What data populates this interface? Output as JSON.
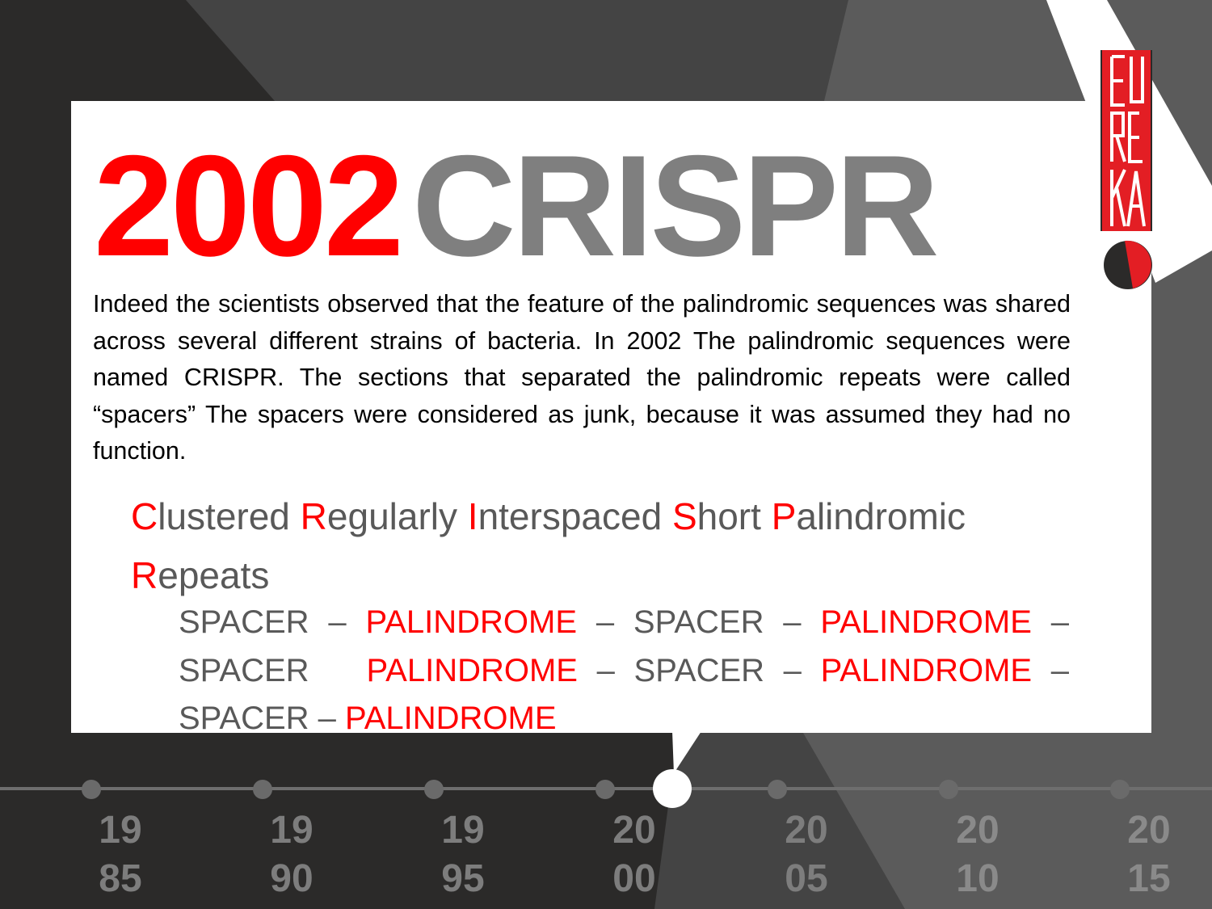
{
  "title": {
    "year": "2002",
    "name": "CRISPR"
  },
  "paragraph": "Indeed the scientists observed that the feature of the palindromic sequences was shared across several different strains of bacteria. In 2002 The palindromic sequences were named CRISPR. The sections that separated the palindromic repeats were called “spacers” The spacers were considered as junk, because it was assumed they  had no function.",
  "acronym": [
    {
      "t": "C",
      "red": true
    },
    {
      "t": "lustered ",
      "red": false
    },
    {
      "t": "R",
      "red": true
    },
    {
      "t": "egularly ",
      "red": false
    },
    {
      "t": "I",
      "red": true
    },
    {
      "t": "nterspaced ",
      "red": false
    },
    {
      "t": "S",
      "red": true
    },
    {
      "t": "hort ",
      "red": false
    },
    {
      "t": "P",
      "red": true
    },
    {
      "t": "alindromic ",
      "red": false
    },
    {
      "t": "R",
      "red": true
    },
    {
      "t": "epeats",
      "red": false
    }
  ],
  "sequence": [
    {
      "t": "SPACER – ",
      "red": false
    },
    {
      "t": "PALINDROME",
      "red": true
    },
    {
      "t": " – SPACER – ",
      "red": false
    },
    {
      "t": "PALINDROME",
      "red": true
    },
    {
      "t": " – SPACER   ",
      "red": false
    },
    {
      "t": "PALINDROME",
      "red": true
    },
    {
      "t": " – SPACER – ",
      "red": false
    },
    {
      "t": "PALINDROME",
      "red": true
    },
    {
      "t": " – SPACER – ",
      "red": false
    },
    {
      "t": "PALINDROME",
      "red": true
    }
  ],
  "logo": {
    "text": "EUREKA"
  },
  "timeline": {
    "years": [
      "1985",
      "1990",
      "1995",
      "2000",
      "2005",
      "2010",
      "2015"
    ],
    "current": "2002"
  },
  "colors": {
    "accent": "#ff0000",
    "title_gray": "#7f7f7f",
    "text_gray": "#595959",
    "dark_bg": "#2b2a29"
  }
}
